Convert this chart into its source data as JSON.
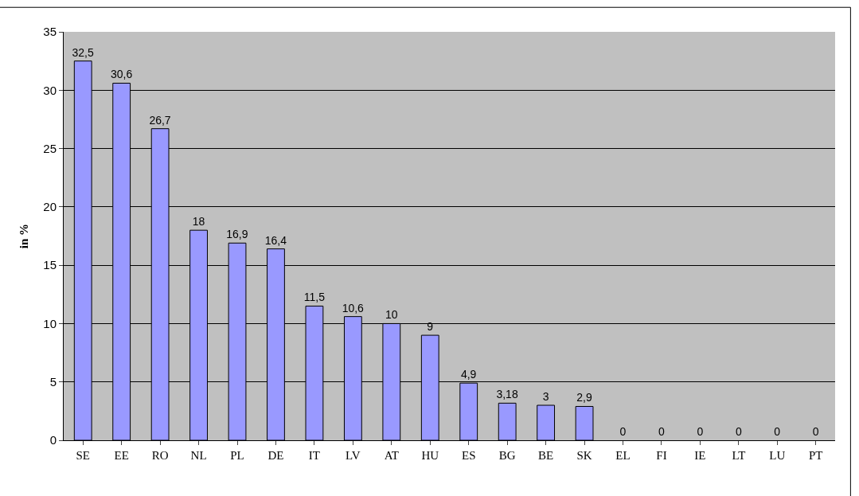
{
  "chart_data": {
    "type": "bar",
    "ylabel": "in %",
    "categories": [
      "SE",
      "EE",
      "RO",
      "NL",
      "PL",
      "DE",
      "IT",
      "LV",
      "AT",
      "HU",
      "ES",
      "BG",
      "BE",
      "SK",
      "EL",
      "FI",
      "IE",
      "LT",
      "LU",
      "PT"
    ],
    "values": [
      32.5,
      30.6,
      26.7,
      18,
      16.9,
      16.4,
      11.5,
      10.6,
      10,
      9,
      4.9,
      3.18,
      3,
      2.9,
      0,
      0,
      0,
      0,
      0,
      0
    ],
    "value_labels": [
      "32,5",
      "30,6",
      "26,7",
      "18",
      "16,9",
      "16,4",
      "11,5",
      "10,6",
      "10",
      "9",
      "4,9",
      "3,18",
      "3",
      "2,9",
      "0",
      "0",
      "0",
      "0",
      "0",
      "0"
    ],
    "color": "#9999ff",
    "ylim": [
      0,
      35
    ],
    "yticks": [
      0,
      5,
      10,
      15,
      20,
      25,
      30,
      35
    ],
    "grid": "y"
  }
}
